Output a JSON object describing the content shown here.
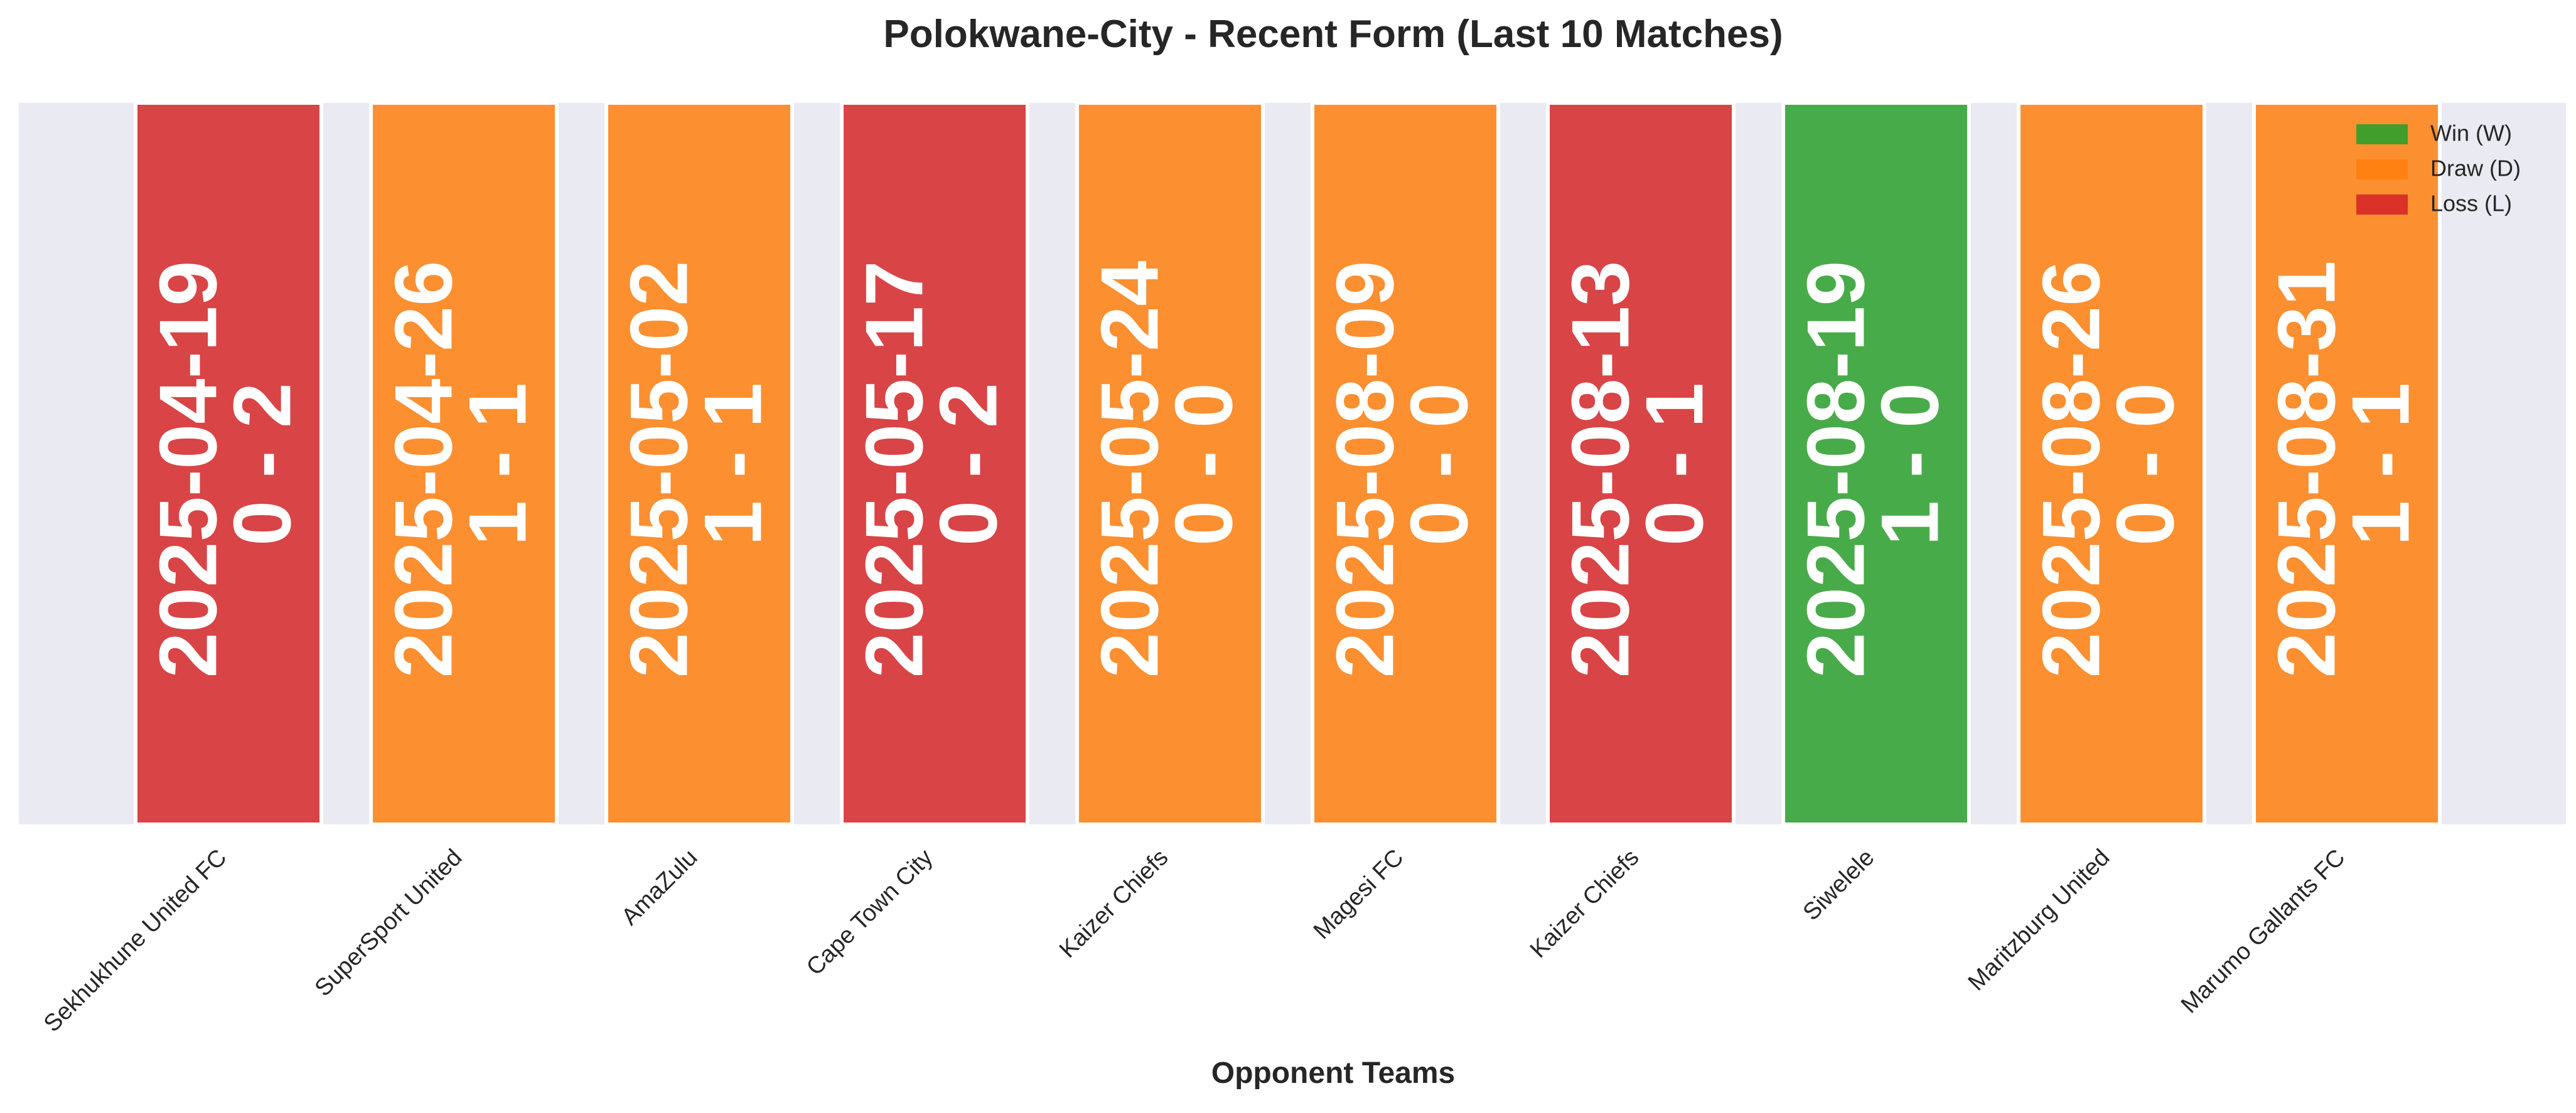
{
  "chart_data": {
    "type": "bar",
    "title": "Polokwane-City - Recent Form (Last 10 Matches)",
    "xlabel": "Opponent Teams",
    "ylabel": "",
    "grid": false,
    "legend_position": "top-right",
    "categories": [
      "Sekhukhune United FC",
      "SuperSport United",
      "AmaZulu",
      "Cape Town City",
      "Kaizer Chiefs",
      "Magesi FC",
      "Kaizer Chiefs",
      "Siwelele",
      "Maritzburg United",
      "Marumo Gallants FC"
    ],
    "matches": [
      {
        "opponent": "Sekhukhune United FC",
        "date": "2025-04-19",
        "score": "0 - 2",
        "result": "L"
      },
      {
        "opponent": "SuperSport United",
        "date": "2025-04-26",
        "score": "1 - 1",
        "result": "D"
      },
      {
        "opponent": "AmaZulu",
        "date": "2025-05-02",
        "score": "1 - 1",
        "result": "D"
      },
      {
        "opponent": "Cape Town City",
        "date": "2025-05-17",
        "score": "0 - 2",
        "result": "L"
      },
      {
        "opponent": "Kaizer Chiefs",
        "date": "2025-05-24",
        "score": "0 - 0",
        "result": "D"
      },
      {
        "opponent": "Magesi FC",
        "date": "2025-08-09",
        "score": "0 - 0",
        "result": "D"
      },
      {
        "opponent": "Kaizer Chiefs",
        "date": "2025-08-13",
        "score": "0 - 1",
        "result": "L"
      },
      {
        "opponent": "Siwelele",
        "date": "2025-08-19",
        "score": "1 - 0",
        "result": "W"
      },
      {
        "opponent": "Maritzburg United",
        "date": "2025-08-26",
        "score": "0 - 0",
        "result": "D"
      },
      {
        "opponent": "Marumo Gallants FC",
        "date": "2025-08-31",
        "score": "1 - 1",
        "result": "D"
      }
    ],
    "values": [
      1,
      1,
      1,
      1,
      1,
      1,
      1,
      1,
      1,
      1
    ],
    "legend": [
      {
        "key": "W",
        "label": "Win (W)",
        "color": "#2ca02c"
      },
      {
        "key": "D",
        "label": "Draw (D)",
        "color": "#ff7f0e"
      },
      {
        "key": "L",
        "label": "Loss (L)",
        "color": "#d62728"
      }
    ],
    "colors": {
      "plot_background": "#eaeaf2",
      "bar_label": "#ffffff",
      "text": "#262626"
    }
  }
}
